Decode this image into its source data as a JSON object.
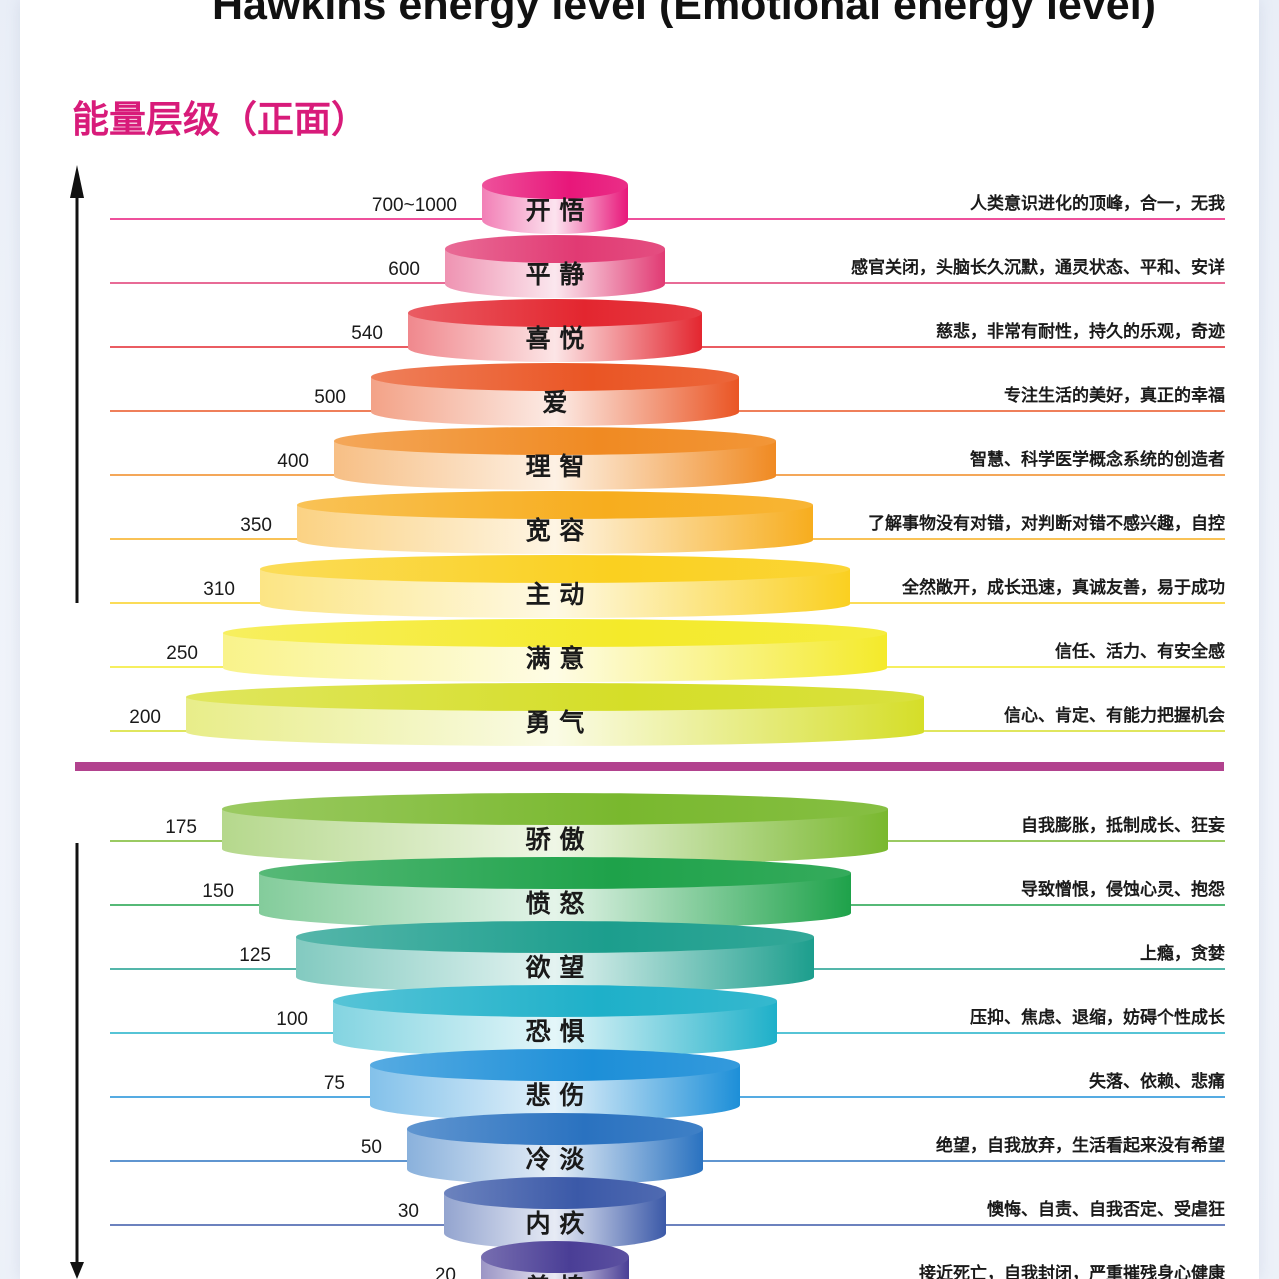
{
  "title": "Hawkins energy level (Emotional energy level)",
  "subtitle": "能量层级（正面）",
  "positive_levels": [
    {
      "value": "700~1000",
      "name": "开 悟",
      "desc": "人类意识进化的顶峰，合一，无我",
      "color": "#e8177a"
    },
    {
      "value": "600",
      "name": "平 静",
      "desc": "感官关闭，头脑长久沉默，通灵状态、平和、安详",
      "color": "#e13a73"
    },
    {
      "value": "540",
      "name": "喜 悦",
      "desc": "慈悲，非常有耐性，持久的乐观，奇迹",
      "color": "#e3262f"
    },
    {
      "value": "500",
      "name": "爱",
      "desc": "专注生活的美好，真正的幸福",
      "color": "#ea5524"
    },
    {
      "value": "400",
      "name": "理 智",
      "desc": "智慧、科学医学概念系统的创造者",
      "color": "#f08a22"
    },
    {
      "value": "350",
      "name": "宽 容",
      "desc": "了解事物没有对错，对判断对错不感兴趣，自控",
      "color": "#f7ad1e"
    },
    {
      "value": "310",
      "name": "主 动",
      "desc": "全然敞开，成长迅速，真诚友善，易于成功",
      "color": "#fad020"
    },
    {
      "value": "250",
      "name": "满 意",
      "desc": "信任、活力、有安全感",
      "color": "#f4ea2a"
    },
    {
      "value": "200",
      "name": "勇 气",
      "desc": "信心、肯定、有能力把握机会",
      "color": "#d5de28"
    }
  ],
  "negative_levels": [
    {
      "value": "175",
      "name": "骄 傲",
      "desc": "自我膨胀，抵制成长、狂妄",
      "color": "#79b82e"
    },
    {
      "value": "150",
      "name": "愤 怒",
      "desc": "导致憎恨，侵蚀心灵、抱怨",
      "color": "#1ea24a"
    },
    {
      "value": "125",
      "name": "欲 望",
      "desc": "上瘾，贪婪",
      "color": "#1c9e8d"
    },
    {
      "value": "100",
      "name": "恐 惧",
      "desc": "压抑、焦虑、退缩，妨碍个性成长",
      "color": "#1eb0c9"
    },
    {
      "value": "75",
      "name": "悲 伤",
      "desc": "失落、依赖、悲痛",
      "color": "#1d8fd8"
    },
    {
      "value": "50",
      "name": "冷 淡",
      "desc": "绝望，自我放弃，生活看起来没有希望",
      "color": "#2a72c0"
    },
    {
      "value": "30",
      "name": "内 疚",
      "desc": "懊悔、自责、自我否定、受虐狂",
      "color": "#3b59a8"
    },
    {
      "value": "20",
      "name": "羞 愧",
      "desc": "接近死亡，自我封闭，严重摧残身心健康",
      "color": "#4a3e96"
    }
  ],
  "divider_color": "#b2428e",
  "arrow_color": "#111111"
}
